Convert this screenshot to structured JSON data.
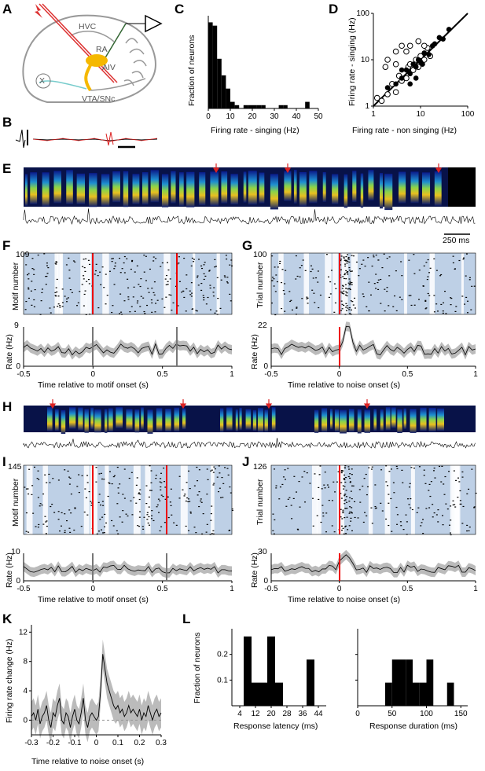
{
  "panels": {
    "A": "A",
    "B": "B",
    "C": "C",
    "D": "D",
    "E": "E",
    "F": "F",
    "G": "G",
    "H": "H",
    "I": "I",
    "J": "J",
    "K": "K",
    "L": "L"
  },
  "anatomy": {
    "hvc": "HVC",
    "ra": "RA",
    "aiv": "AIV",
    "x": "X",
    "vta": "VTA/SNc"
  },
  "scale_bar": "250  ms",
  "labels": {
    "motif_number": "Motif number",
    "trial_number": "Trial number",
    "rate_hz": "Rate (Hz)",
    "time_motif": "Time relative to motif onset (s)",
    "time_noise": "Time relative to noise onset (s)",
    "F_max": "109",
    "G_max": "100",
    "I_max": "145",
    "J_max": "126",
    "F_rate_max": "9",
    "G_rate_max": "22",
    "I_rate_max": "10",
    "J_rate_max": "30"
  },
  "chart_data": [
    {
      "id": "C",
      "type": "bar",
      "xlabel": "Firing rate - singing (Hz)",
      "ylabel": "Fraction of neurons",
      "xlim": [
        0,
        50
      ],
      "x_ticks": [
        "0",
        "10",
        "20",
        "30",
        "40",
        "50"
      ],
      "bin_width": 2,
      "bins": [
        [
          2,
          0.26
        ],
        [
          4,
          0.25
        ],
        [
          6,
          0.15
        ],
        [
          8,
          0.1
        ],
        [
          10,
          0.06
        ],
        [
          12,
          0.02
        ],
        [
          14,
          0.01
        ],
        [
          18,
          0.01
        ],
        [
          20,
          0.01
        ],
        [
          22,
          0.01
        ],
        [
          24,
          0.01
        ],
        [
          26,
          0.01
        ],
        [
          34,
          0.01
        ],
        [
          36,
          0.01
        ],
        [
          46,
          0.02
        ]
      ]
    },
    {
      "id": "D",
      "type": "scatter",
      "xlabel": "Firing rate - non singing (Hz)",
      "ylabel": "Firing rate - singing (Hz)",
      "scale": "log",
      "xlim": [
        1,
        100
      ],
      "ylim": [
        1,
        100
      ],
      "x_ticks": [
        "1",
        "10",
        "100"
      ],
      "y_ticks": [
        "1",
        "10",
        "100"
      ],
      "filled": [
        [
          2,
          2.5
        ],
        [
          3,
          3
        ],
        [
          4,
          4
        ],
        [
          5,
          6
        ],
        [
          6,
          5
        ],
        [
          7,
          8
        ],
        [
          8,
          7
        ],
        [
          9,
          10
        ],
        [
          10,
          9
        ],
        [
          12,
          14
        ],
        [
          15,
          13
        ],
        [
          18,
          20
        ],
        [
          20,
          22
        ],
        [
          25,
          30
        ],
        [
          30,
          28
        ],
        [
          40,
          45
        ],
        [
          6,
          3
        ],
        [
          4,
          6
        ],
        [
          8,
          4
        ],
        [
          11,
          8
        ]
      ],
      "open": [
        [
          1.2,
          1.5
        ],
        [
          1.5,
          1.3
        ],
        [
          2,
          1.8
        ],
        [
          2.5,
          3
        ],
        [
          3,
          2
        ],
        [
          3.5,
          4.5
        ],
        [
          4,
          3.5
        ],
        [
          5,
          4
        ],
        [
          5.5,
          7
        ],
        [
          6,
          8
        ],
        [
          7,
          6
        ],
        [
          8,
          10
        ],
        [
          9,
          7
        ],
        [
          10,
          12
        ],
        [
          12,
          10
        ],
        [
          14,
          18
        ],
        [
          16,
          12
        ],
        [
          3,
          15
        ],
        [
          2,
          10
        ],
        [
          4,
          20
        ],
        [
          5,
          15
        ],
        [
          6,
          20
        ],
        [
          9,
          25
        ],
        [
          12,
          20
        ],
        [
          1.8,
          7
        ],
        [
          3,
          8
        ]
      ],
      "fit_line": [
        [
          1,
          1
        ],
        [
          100,
          100
        ]
      ]
    },
    {
      "id": "K",
      "type": "line",
      "xlabel": "Time relative to noise onset (s)",
      "ylabel": "Firing rate change (Hz)",
      "xlim": [
        -0.3,
        0.3
      ],
      "ylim": [
        -2,
        13
      ],
      "x_ticks": [
        "-0.3",
        "-0.2",
        "-0.1",
        "0",
        "0.1",
        "0.2",
        "0.3"
      ],
      "y_ticks": [
        "0",
        "4",
        "8",
        "12"
      ],
      "x": [
        -0.3,
        -0.29,
        -0.28,
        -0.27,
        -0.26,
        -0.25,
        -0.24,
        -0.23,
        -0.22,
        -0.21,
        -0.2,
        -0.19,
        -0.18,
        -0.17,
        -0.16,
        -0.15,
        -0.14,
        -0.13,
        -0.12,
        -0.11,
        -0.1,
        -0.09,
        -0.08,
        -0.07,
        -0.06,
        -0.05,
        -0.04,
        -0.03,
        -0.02,
        -0.01,
        0,
        0.01,
        0.02,
        0.03,
        0.04,
        0.05,
        0.06,
        0.07,
        0.08,
        0.09,
        0.1,
        0.11,
        0.12,
        0.13,
        0.14,
        0.15,
        0.16,
        0.17,
        0.18,
        0.19,
        0.2,
        0.21,
        0.22,
        0.23,
        0.24,
        0.25,
        0.26,
        0.27,
        0.28,
        0.29,
        0.3
      ],
      "y": [
        0.5,
        1,
        0,
        1.5,
        -0.5,
        0.5,
        1,
        2,
        0,
        -1,
        1,
        0.5,
        2,
        3,
        0,
        -0.5,
        1,
        0.5,
        -1,
        0.5,
        1.5,
        0,
        -0.5,
        1,
        3,
        0,
        -1,
        0.5,
        1,
        0.5,
        0,
        0.5,
        4,
        9,
        7,
        5,
        4,
        3,
        2,
        1.5,
        2,
        1,
        1.5,
        0.5,
        1,
        2,
        1,
        1.5,
        1,
        0.5,
        1.5,
        0,
        1,
        0.5,
        2,
        1,
        0,
        1,
        1.5,
        0.5,
        1
      ],
      "sem": 2.0
    },
    {
      "id": "L1",
      "type": "bar",
      "xlabel": "Response latency (ms)",
      "ylabel": "Fraction of neurons",
      "x_ticks": [
        "4",
        "12",
        "20",
        "28",
        "36",
        "44"
      ],
      "y_ticks": [
        "0.1",
        "0.2"
      ],
      "ylim": [
        0,
        0.3
      ],
      "bins": [
        [
          8,
          0.27
        ],
        [
          12,
          0.09
        ],
        [
          16,
          0.09
        ],
        [
          20,
          0.27
        ],
        [
          24,
          0.09
        ],
        [
          40,
          0.18
        ]
      ],
      "bin_width": 4
    },
    {
      "id": "L2",
      "type": "bar",
      "xlabel": "Response duration (ms)",
      "x_ticks": [
        "0",
        "50",
        "100",
        "150"
      ],
      "ylim": [
        0,
        0.3
      ],
      "bins": [
        [
          45,
          0.09
        ],
        [
          55,
          0.18
        ],
        [
          65,
          0.18
        ],
        [
          75,
          0.18
        ],
        [
          85,
          0.09
        ],
        [
          95,
          0.09
        ],
        [
          105,
          0.18
        ],
        [
          135,
          0.09
        ]
      ],
      "bin_width": 10
    }
  ],
  "raster_axis": {
    "F_ticks": [
      "-0.5",
      "0",
      "0.5",
      "1"
    ],
    "G_ticks": [
      "-0.5",
      "0",
      "0.5",
      "1"
    ],
    "I_ticks": [
      "-0.5",
      "0",
      "0.5",
      "1"
    ],
    "J_ticks": [
      "-0.5",
      "0",
      "0.5",
      "1"
    ]
  },
  "rate_ticks_zero": "0"
}
